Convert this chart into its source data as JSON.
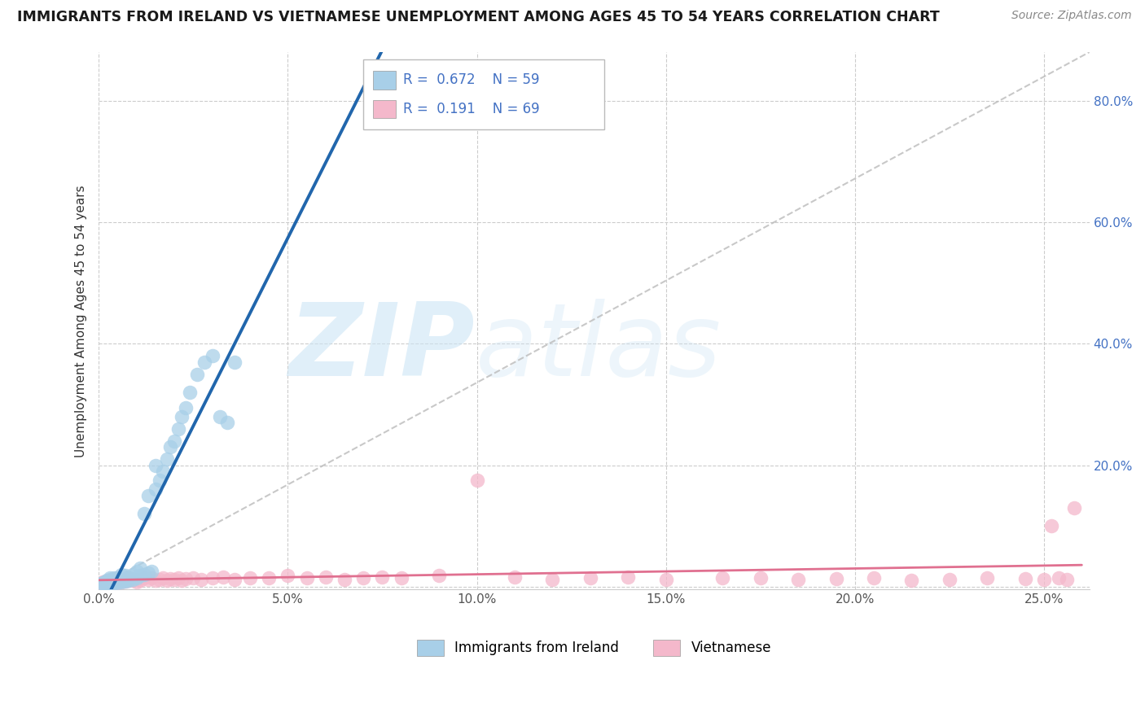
{
  "title": "IMMIGRANTS FROM IRELAND VS VIETNAMESE UNEMPLOYMENT AMONG AGES 45 TO 54 YEARS CORRELATION CHART",
  "source": "Source: ZipAtlas.com",
  "ylabel": "Unemployment Among Ages 45 to 54 years",
  "xlim": [
    0.0,
    0.262
  ],
  "ylim": [
    -0.005,
    0.88
  ],
  "xticks": [
    0.0,
    0.05,
    0.1,
    0.15,
    0.2,
    0.25
  ],
  "xticklabels": [
    "0.0%",
    "5.0%",
    "10.0%",
    "15.0%",
    "20.0%",
    "25.0%"
  ],
  "yticks": [
    0.0,
    0.2,
    0.4,
    0.6,
    0.8
  ],
  "yticklabels": [
    "",
    "20.0%",
    "40.0%",
    "60.0%",
    "80.0%"
  ],
  "ireland_color": "#a8cfe8",
  "ireland_edge_color": "#6aaad4",
  "vietnamese_color": "#f4b8cb",
  "vietnamese_edge_color": "#e07090",
  "ireland_line_color": "#2166ac",
  "vietnamese_line_color": "#e07090",
  "diag_color": "#bbbbbb",
  "ireland_R": 0.672,
  "ireland_N": 59,
  "vietnamese_R": 0.191,
  "vietnamese_N": 69,
  "watermark_zip": "ZIP",
  "watermark_atlas": "atlas",
  "background_color": "#ffffff",
  "grid_color": "#cccccc",
  "legend_label_ireland": "Immigrants from Ireland",
  "legend_label_vietnamese": "Vietnamese",
  "legend_R_color": "#4472c4",
  "title_color": "#1a1a1a",
  "source_color": "#888888",
  "ylabel_color": "#333333",
  "ytick_color": "#4472c4",
  "xtick_color": "#555555",
  "ireland_scatter_x": [
    0.001,
    0.001,
    0.001,
    0.002,
    0.002,
    0.002,
    0.002,
    0.002,
    0.002,
    0.003,
    0.003,
    0.003,
    0.003,
    0.003,
    0.004,
    0.004,
    0.004,
    0.004,
    0.005,
    0.005,
    0.005,
    0.005,
    0.006,
    0.006,
    0.006,
    0.006,
    0.007,
    0.007,
    0.007,
    0.008,
    0.008,
    0.009,
    0.009,
    0.01,
    0.01,
    0.011,
    0.011,
    0.012,
    0.012,
    0.013,
    0.013,
    0.014,
    0.015,
    0.015,
    0.016,
    0.017,
    0.018,
    0.019,
    0.02,
    0.021,
    0.022,
    0.023,
    0.024,
    0.026,
    0.028,
    0.03,
    0.032,
    0.034,
    0.036
  ],
  "ireland_scatter_y": [
    0.005,
    0.006,
    0.007,
    0.005,
    0.006,
    0.007,
    0.008,
    0.009,
    0.01,
    0.006,
    0.007,
    0.008,
    0.012,
    0.015,
    0.006,
    0.008,
    0.01,
    0.015,
    0.007,
    0.009,
    0.01,
    0.014,
    0.008,
    0.01,
    0.012,
    0.02,
    0.009,
    0.012,
    0.018,
    0.01,
    0.015,
    0.012,
    0.02,
    0.015,
    0.025,
    0.018,
    0.03,
    0.02,
    0.12,
    0.022,
    0.15,
    0.025,
    0.16,
    0.2,
    0.175,
    0.19,
    0.21,
    0.23,
    0.24,
    0.26,
    0.28,
    0.295,
    0.32,
    0.35,
    0.37,
    0.38,
    0.28,
    0.27,
    0.37
  ],
  "vietnamese_scatter_x": [
    0.001,
    0.001,
    0.002,
    0.002,
    0.003,
    0.003,
    0.004,
    0.004,
    0.004,
    0.005,
    0.005,
    0.005,
    0.006,
    0.006,
    0.007,
    0.007,
    0.008,
    0.008,
    0.009,
    0.01,
    0.01,
    0.011,
    0.012,
    0.013,
    0.014,
    0.015,
    0.016,
    0.017,
    0.018,
    0.019,
    0.02,
    0.021,
    0.022,
    0.023,
    0.025,
    0.027,
    0.03,
    0.033,
    0.036,
    0.04,
    0.045,
    0.05,
    0.055,
    0.06,
    0.065,
    0.07,
    0.075,
    0.08,
    0.09,
    0.1,
    0.11,
    0.12,
    0.13,
    0.14,
    0.15,
    0.165,
    0.175,
    0.185,
    0.195,
    0.205,
    0.215,
    0.225,
    0.235,
    0.245,
    0.25,
    0.252,
    0.254,
    0.256,
    0.258
  ],
  "vietnamese_scatter_y": [
    0.005,
    0.008,
    0.006,
    0.009,
    0.007,
    0.01,
    0.006,
    0.008,
    0.012,
    0.007,
    0.009,
    0.015,
    0.008,
    0.012,
    0.009,
    0.013,
    0.01,
    0.015,
    0.01,
    0.008,
    0.012,
    0.01,
    0.015,
    0.012,
    0.014,
    0.01,
    0.012,
    0.015,
    0.01,
    0.013,
    0.012,
    0.015,
    0.01,
    0.013,
    0.015,
    0.012,
    0.014,
    0.016,
    0.012,
    0.015,
    0.014,
    0.018,
    0.015,
    0.016,
    0.012,
    0.015,
    0.016,
    0.014,
    0.018,
    0.175,
    0.016,
    0.012,
    0.015,
    0.016,
    0.012,
    0.014,
    0.015,
    0.012,
    0.013,
    0.015,
    0.01,
    0.012,
    0.014,
    0.013,
    0.012,
    0.1,
    0.015,
    0.012,
    0.13
  ]
}
